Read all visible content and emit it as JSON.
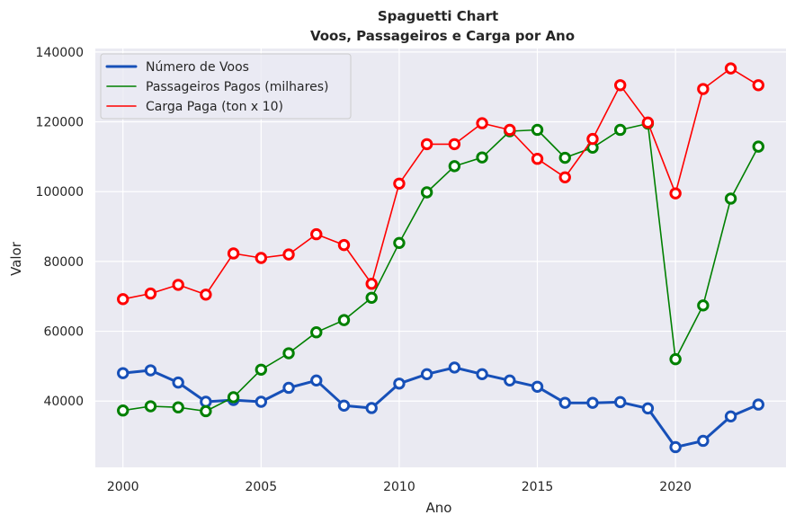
{
  "chart_data": {
    "type": "line",
    "title": "Spaguetti Chart",
    "subtitle": "Voos, Passageiros e Carga por Ano",
    "xlabel": "Ano",
    "ylabel": "Valor",
    "xlim": [
      1999,
      2024
    ],
    "ylim": [
      21000,
      141000
    ],
    "xticks": [
      2000,
      2005,
      2010,
      2015,
      2020
    ],
    "yticks": [
      40000,
      60000,
      80000,
      100000,
      120000,
      140000
    ],
    "grid": true,
    "legend_position": "top-left",
    "x": [
      2000,
      2001,
      2002,
      2003,
      2004,
      2005,
      2006,
      2007,
      2008,
      2009,
      2010,
      2011,
      2012,
      2013,
      2014,
      2015,
      2016,
      2017,
      2018,
      2019,
      2020,
      2021,
      2022,
      2023
    ],
    "series": [
      {
        "name": "Número de Voos",
        "color": "#1750b8",
        "values": [
          48000,
          48800,
          45300,
          39800,
          40300,
          39800,
          43800,
          45900,
          38700,
          38000,
          45000,
          47700,
          49600,
          47700,
          45900,
          44100,
          39500,
          39500,
          39700,
          37900,
          26800,
          28600,
          35600,
          39000
        ]
      },
      {
        "name": "Passageiros Pagos (milhares)",
        "color": "#008000",
        "values": [
          37300,
          38500,
          38200,
          37100,
          41100,
          49000,
          53700,
          59700,
          63200,
          69600,
          85300,
          99800,
          107300,
          109800,
          117300,
          117700,
          109700,
          112600,
          117700,
          119500,
          52000,
          67400,
          98000,
          112900
        ]
      },
      {
        "name": "Carga Paga (ton x 10)",
        "color": "#ff0000",
        "values": [
          69200,
          70800,
          73300,
          70500,
          82300,
          81000,
          82000,
          87800,
          84700,
          73600,
          102300,
          113600,
          113600,
          119600,
          117700,
          109400,
          104100,
          115100,
          130500,
          119800,
          99500,
          129400,
          135300,
          130500
        ]
      }
    ]
  }
}
